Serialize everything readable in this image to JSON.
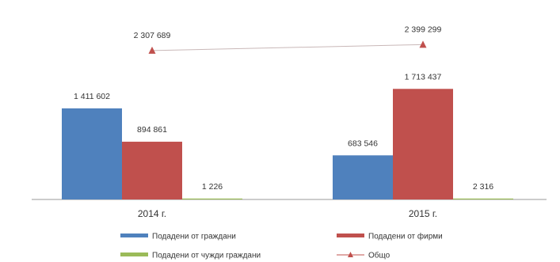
{
  "chart_data": {
    "type": "bar",
    "categories": [
      "2014 г.",
      "2015 г."
    ],
    "series": [
      {
        "name": "Подадени от граждани",
        "values": [
          1411602,
          683546
        ],
        "labels": [
          "1 411 602",
          "683 546"
        ],
        "color": "#4f81bd"
      },
      {
        "name": "Подадени от фирми",
        "values": [
          894861,
          1713437
        ],
        "labels": [
          "894 861",
          "1 713 437"
        ],
        "color": "#c0504d"
      },
      {
        "name": "Подадени от чужди граждани",
        "values": [
          1226,
          2316
        ],
        "labels": [
          "1 226",
          "2 316"
        ],
        "color": "#9bbb59"
      }
    ],
    "line_series": {
      "name": "Общо",
      "values": [
        2307689,
        2399299
      ],
      "labels": [
        "2 307 689",
        "2 399 299"
      ],
      "color": "#c0504d"
    },
    "ylim": [
      0,
      2600000
    ],
    "grid": false,
    "legend_position": "bottom"
  }
}
